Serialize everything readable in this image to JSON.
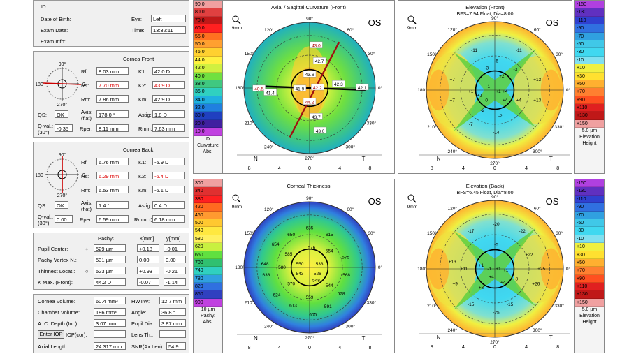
{
  "patient": {
    "id_label": "ID:",
    "dob_label": "Date of Birth:",
    "exam_date_label": "Exam Date:",
    "exam_info_label": "Exam Info:",
    "eye_label": "Eye:",
    "eye_value": "Left",
    "time_label": "Time:",
    "time_value": "13:32:11"
  },
  "cornea_front": {
    "title": "Cornea Front",
    "rf_label": "Rf:",
    "rf": "8.03 mm",
    "rs_label": "Rs:",
    "rs": "7.70 mm",
    "rm_label": "Rm:",
    "rm": "7.86 mm",
    "k1_label": "K1:",
    "k1": "42.0 D",
    "k2_label": "K2:",
    "k2": "43.9 D",
    "km_label": "Km:",
    "km": "42.9 D",
    "qs_label": "QS:",
    "qs": "OK",
    "axis_label": "Axis:",
    "axis_sub": "(flat)",
    "axis": "178.0 °",
    "astig_label": "Astig:",
    "astig": "1.8 D",
    "qval_label": "Q-val.:",
    "qval_sub": "(30°)",
    "qval": "-0.35",
    "rper_label": "Rper:",
    "rper": "8.11 mm",
    "rmin_label": "Rmin:",
    "rmin": "7.63 mm",
    "dial_top": "90°",
    "dial_bottom": "270°",
    "dial_left": "180",
    "dial_right": "0"
  },
  "cornea_back": {
    "title": "Cornea Back",
    "rf_label": "Rf:",
    "rf": "6.76 mm",
    "rs_label": "Rs:",
    "rs": "6.29 mm",
    "rm_label": "Rm:",
    "rm": "6.53 mm",
    "k1_label": "K1:",
    "k1": "-5.9 D",
    "k2_label": "K2:",
    "k2": "-6.4 D",
    "km_label": "Km:",
    "km": "-6.1 D",
    "qs_label": "QS:",
    "qs": "OK",
    "axis_label": "Axis:",
    "axis_sub": "(flat)",
    "axis": "1.4 °",
    "astig_label": "Astig:",
    "astig": "0.4 D",
    "qval_label": "Q-val.:",
    "qval_sub": "(30°)",
    "qval": "0.00",
    "rper_label": "Rper:",
    "rper": "6.59 mm",
    "rmin_label": "Rmin: ◇",
    "rmin": "6.18 mm",
    "dial_top": "90°",
    "dial_bottom": "270°",
    "dial_left": "180",
    "dial_right": "0"
  },
  "pachy": {
    "col_pachy": "Pachy:",
    "col_x": "x[mm]",
    "col_y": "y[mm]",
    "rows": [
      {
        "label": "Pupil Center:",
        "mark": "+",
        "pachy": "529 µm",
        "x": "+0.18",
        "y": "-0.01"
      },
      {
        "label": "Pachy Vertex N.:",
        "mark": "",
        "pachy": "531 µm",
        "x": "0.00",
        "y": "0.00"
      },
      {
        "label": "Thinnest Locat.:",
        "mark": "○",
        "pachy": "523 µm",
        "x": "+0.93",
        "y": "-0.21"
      },
      {
        "label": "K Max. (Front):",
        "mark": "",
        "pachy": "44.2 D",
        "x": "-0.07",
        "y": "-1.14"
      }
    ]
  },
  "volumes": {
    "cornea_volume_label": "Cornea Volume:",
    "cornea_volume": "60.4 mm³",
    "hwtw_label": "HWTW:",
    "hwtw": "12.7 mm",
    "chamber_volume_label": "Chamber Volume:",
    "chamber_volume": "186 mm³",
    "angle_label": "Angle:",
    "angle": "36.8 °",
    "ac_depth_label": "A. C. Depth (Int.):",
    "ac_depth": "3.07 mm",
    "pupil_dia_label": "Pupil Dia:",
    "pupil_dia": "3.87 mm",
    "enter_iop": "Enter IOP",
    "iop_cor_label": "IOP(cor):",
    "lens_th_label": "Lens Th.:",
    "lens_th": "",
    "axial_length_label": "Axial Length:",
    "axial_length": "24.317 mm",
    "snr_label": "SNR(Ax.Len):",
    "snr": "54.9"
  },
  "curv_scale": {
    "values": [
      "90.0",
      "80.0",
      "70.0",
      "60.0",
      "55.0",
      "50.0",
      "46.0",
      "44.0",
      "42.0",
      "40.0",
      "38.0",
      "36.0",
      "34.0",
      "32.0",
      "30.0",
      "20.0",
      "10.0"
    ],
    "colors": [
      "#f0a0a0",
      "#e04040",
      "#c01818",
      "#ff2020",
      "#ff7020",
      "#ffa030",
      "#ffd030",
      "#fff040",
      "#d0f040",
      "#70e040",
      "#40c880",
      "#30d0c0",
      "#20b0e0",
      "#2080e0",
      "#2040c0",
      "#4020a0",
      "#c040e0"
    ],
    "unit": "D",
    "name": "Curvature",
    "type": "Abs."
  },
  "pachy_scale": {
    "values": [
      "300",
      "340",
      "380",
      "420",
      "460",
      "500",
      "540",
      "580",
      "620",
      "660",
      "700",
      "740",
      "780",
      "820",
      "860",
      "900"
    ],
    "colors": [
      "#f0a0a0",
      "#e03030",
      "#ff2020",
      "#ff6a20",
      "#ff9a30",
      "#ffc830",
      "#ffe840",
      "#fff060",
      "#c8f040",
      "#60e040",
      "#30c070",
      "#30d0c0",
      "#30a0e0",
      "#3070e0",
      "#3040c0",
      "#c040e0"
    ],
    "unit": "10 µm",
    "name": "Pachy.",
    "type": "Abs."
  },
  "elev_front_scale": {
    "values": [
      "-150",
      "-130",
      "-110",
      "-90",
      "-70",
      "-50",
      "-30",
      "-10",
      "+10",
      "+30",
      "+50",
      "+70",
      "+90",
      "+110",
      "+130",
      "+150"
    ],
    "colors": [
      "#b040e0",
      "#6030c0",
      "#3040d0",
      "#3070e0",
      "#30a0e0",
      "#40c8e8",
      "#40d8f0",
      "#80e0f0",
      "#f0f040",
      "#ffe030",
      "#ffb030",
      "#ff8030",
      "#ff5020",
      "#e02020",
      "#c01818",
      "#f0a0a0"
    ],
    "unit": "5.0 µm",
    "name": "Elevation",
    "type": "Height"
  },
  "elev_back_scale": {
    "values": [
      "-150",
      "-130",
      "-110",
      "-90",
      "-70",
      "-50",
      "-30",
      "-10",
      "+10",
      "+30",
      "+50",
      "+70",
      "+90",
      "+110",
      "+130",
      "+150"
    ],
    "colors": [
      "#b040e0",
      "#6030c0",
      "#3040d0",
      "#3070e0",
      "#30a0e0",
      "#40c8e8",
      "#40d8f0",
      "#80e0f0",
      "#f0f040",
      "#ffe030",
      "#ffb030",
      "#ff8030",
      "#ff5020",
      "#e02020",
      "#c01818",
      "#f0a0a0"
    ],
    "unit": "5.0 µm",
    "name": "Elevation",
    "type": "Height"
  },
  "maps": {
    "axial": {
      "title": "Axial / Sagittal Curvature (Front)",
      "subtitle": "",
      "eye": "OS",
      "zoom": "9mm",
      "labels": [
        "43.0",
        "43.6",
        "42.7",
        "40.5",
        "41.4",
        "41.9",
        "42.2",
        "42.3",
        "42.1",
        "44.2",
        "43.7",
        "43.0"
      ]
    },
    "thick": {
      "title": "Corneal Thickness",
      "subtitle": "",
      "eye": "OS",
      "zoom": "9mm",
      "labels": [
        "635",
        "650",
        "615",
        "654",
        "576",
        "554",
        "585",
        "575",
        "648",
        "580",
        "550",
        "533",
        "526",
        "568",
        "543",
        "548",
        "638",
        "570",
        "544",
        "578",
        "624",
        "559",
        "613",
        "591",
        "605"
      ]
    },
    "elev_front": {
      "title": "Elevation (Front)",
      "subtitle": "BFS=7.94 Float, Dia=8.00",
      "eye": "OS",
      "zoom": "9mm",
      "labels": [
        "-11",
        "-6",
        "-11",
        "-3",
        "+2",
        "-3",
        "+7",
        "-1",
        "+1",
        "+4",
        "+13",
        "+1",
        "+1",
        "0",
        "+4",
        "+13",
        "+4",
        "+7",
        "-2",
        "-7",
        "-2",
        "-14"
      ]
    },
    "elev_back": {
      "title": "Elevation (Back)",
      "subtitle": "BFS=6.45 Float, Dia=8.00",
      "eye": "OS",
      "zoom": "9mm",
      "labels": [
        "-20",
        "-17",
        "-22",
        "-5",
        "+22",
        "+13",
        "+1",
        "-1",
        "+1",
        "+25",
        "+11",
        "+1",
        "+4",
        "+8",
        "+4",
        "+9",
        "+26",
        "+3",
        "-15",
        "-15",
        "-25"
      ]
    }
  },
  "axis_ticks": {
    "n": "N",
    "t": "T",
    "vals": [
      "8",
      "4",
      "0",
      "4",
      "8"
    ],
    "ang_top": "90°",
    "ang_bottom": "270°",
    "a120": "120°",
    "a60": "60°",
    "a150": "150°",
    "a30": "30°",
    "a180": "180°",
    "a0": "0°",
    "a210": "210°",
    "a330": "330°",
    "a240": "240°",
    "a300": "300°"
  }
}
